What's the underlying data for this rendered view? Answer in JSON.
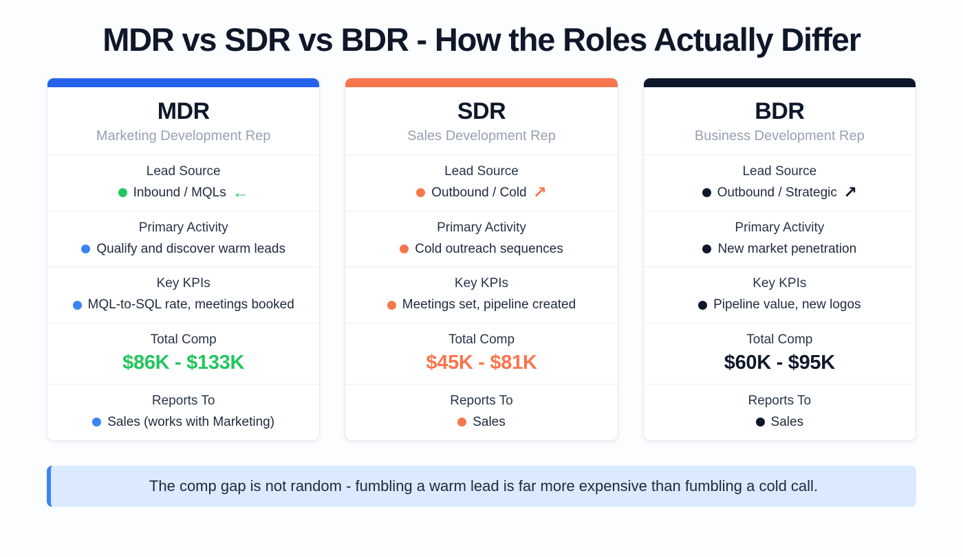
{
  "page": {
    "title": "MDR vs SDR vs BDR - How the Roles Actually Differ",
    "title_color": "#0f172a"
  },
  "columns": [
    {
      "abbr": "MDR",
      "full_name": "Marketing Development Rep",
      "accent_color": "#2563eb",
      "comp_color": "#22c55e",
      "rows": [
        {
          "label": "Lead Source",
          "value": "Inbound / MQLs",
          "dot_color": "#22c55e",
          "arrow": "←",
          "arrow_color": "#22c55e"
        },
        {
          "label": "Primary Activity",
          "value": "Qualify and discover warm leads",
          "dot_color": "#3b82f6"
        },
        {
          "label": "Key KPIs",
          "value": "MQL-to-SQL rate, meetings booked",
          "dot_color": "#3b82f6"
        },
        {
          "label": "Total Comp",
          "value": "$86K - $133K"
        },
        {
          "label": "Reports To",
          "value": "Sales (works with Marketing)",
          "dot_color": "#3b82f6"
        }
      ]
    },
    {
      "abbr": "SDR",
      "full_name": "Sales Development Rep",
      "accent_color": "#f8764d",
      "comp_color": "#f8764d",
      "rows": [
        {
          "label": "Lead Source",
          "value": "Outbound / Cold",
          "dot_color": "#f8764d",
          "arrow": "↗",
          "arrow_color": "#f8764d"
        },
        {
          "label": "Primary Activity",
          "value": "Cold outreach sequences",
          "dot_color": "#f8764d"
        },
        {
          "label": "Key KPIs",
          "value": "Meetings set, pipeline created",
          "dot_color": "#f8764d"
        },
        {
          "label": "Total Comp",
          "value": "$45K - $81K"
        },
        {
          "label": "Reports To",
          "value": "Sales",
          "dot_color": "#f8764d"
        }
      ]
    },
    {
      "abbr": "BDR",
      "full_name": "Business Development Rep",
      "accent_color": "#0f172a",
      "comp_color": "#0f172a",
      "rows": [
        {
          "label": "Lead Source",
          "value": "Outbound / Strategic",
          "dot_color": "#0f172a",
          "arrow": "↗",
          "arrow_color": "#0f172a"
        },
        {
          "label": "Primary Activity",
          "value": "New market penetration",
          "dot_color": "#0f172a"
        },
        {
          "label": "Key KPIs",
          "value": "Pipeline value, new logos",
          "dot_color": "#0f172a"
        },
        {
          "label": "Total Comp",
          "value": "$60K - $95K"
        },
        {
          "label": "Reports To",
          "value": "Sales",
          "dot_color": "#0f172a"
        }
      ]
    }
  ],
  "callout": {
    "text": "The comp gap is not random - fumbling a warm lead is far more expensive than fumbling a cold call.",
    "bg": "#dbeafe",
    "border_color": "#3b82f6",
    "text_color": "#1e293b"
  }
}
